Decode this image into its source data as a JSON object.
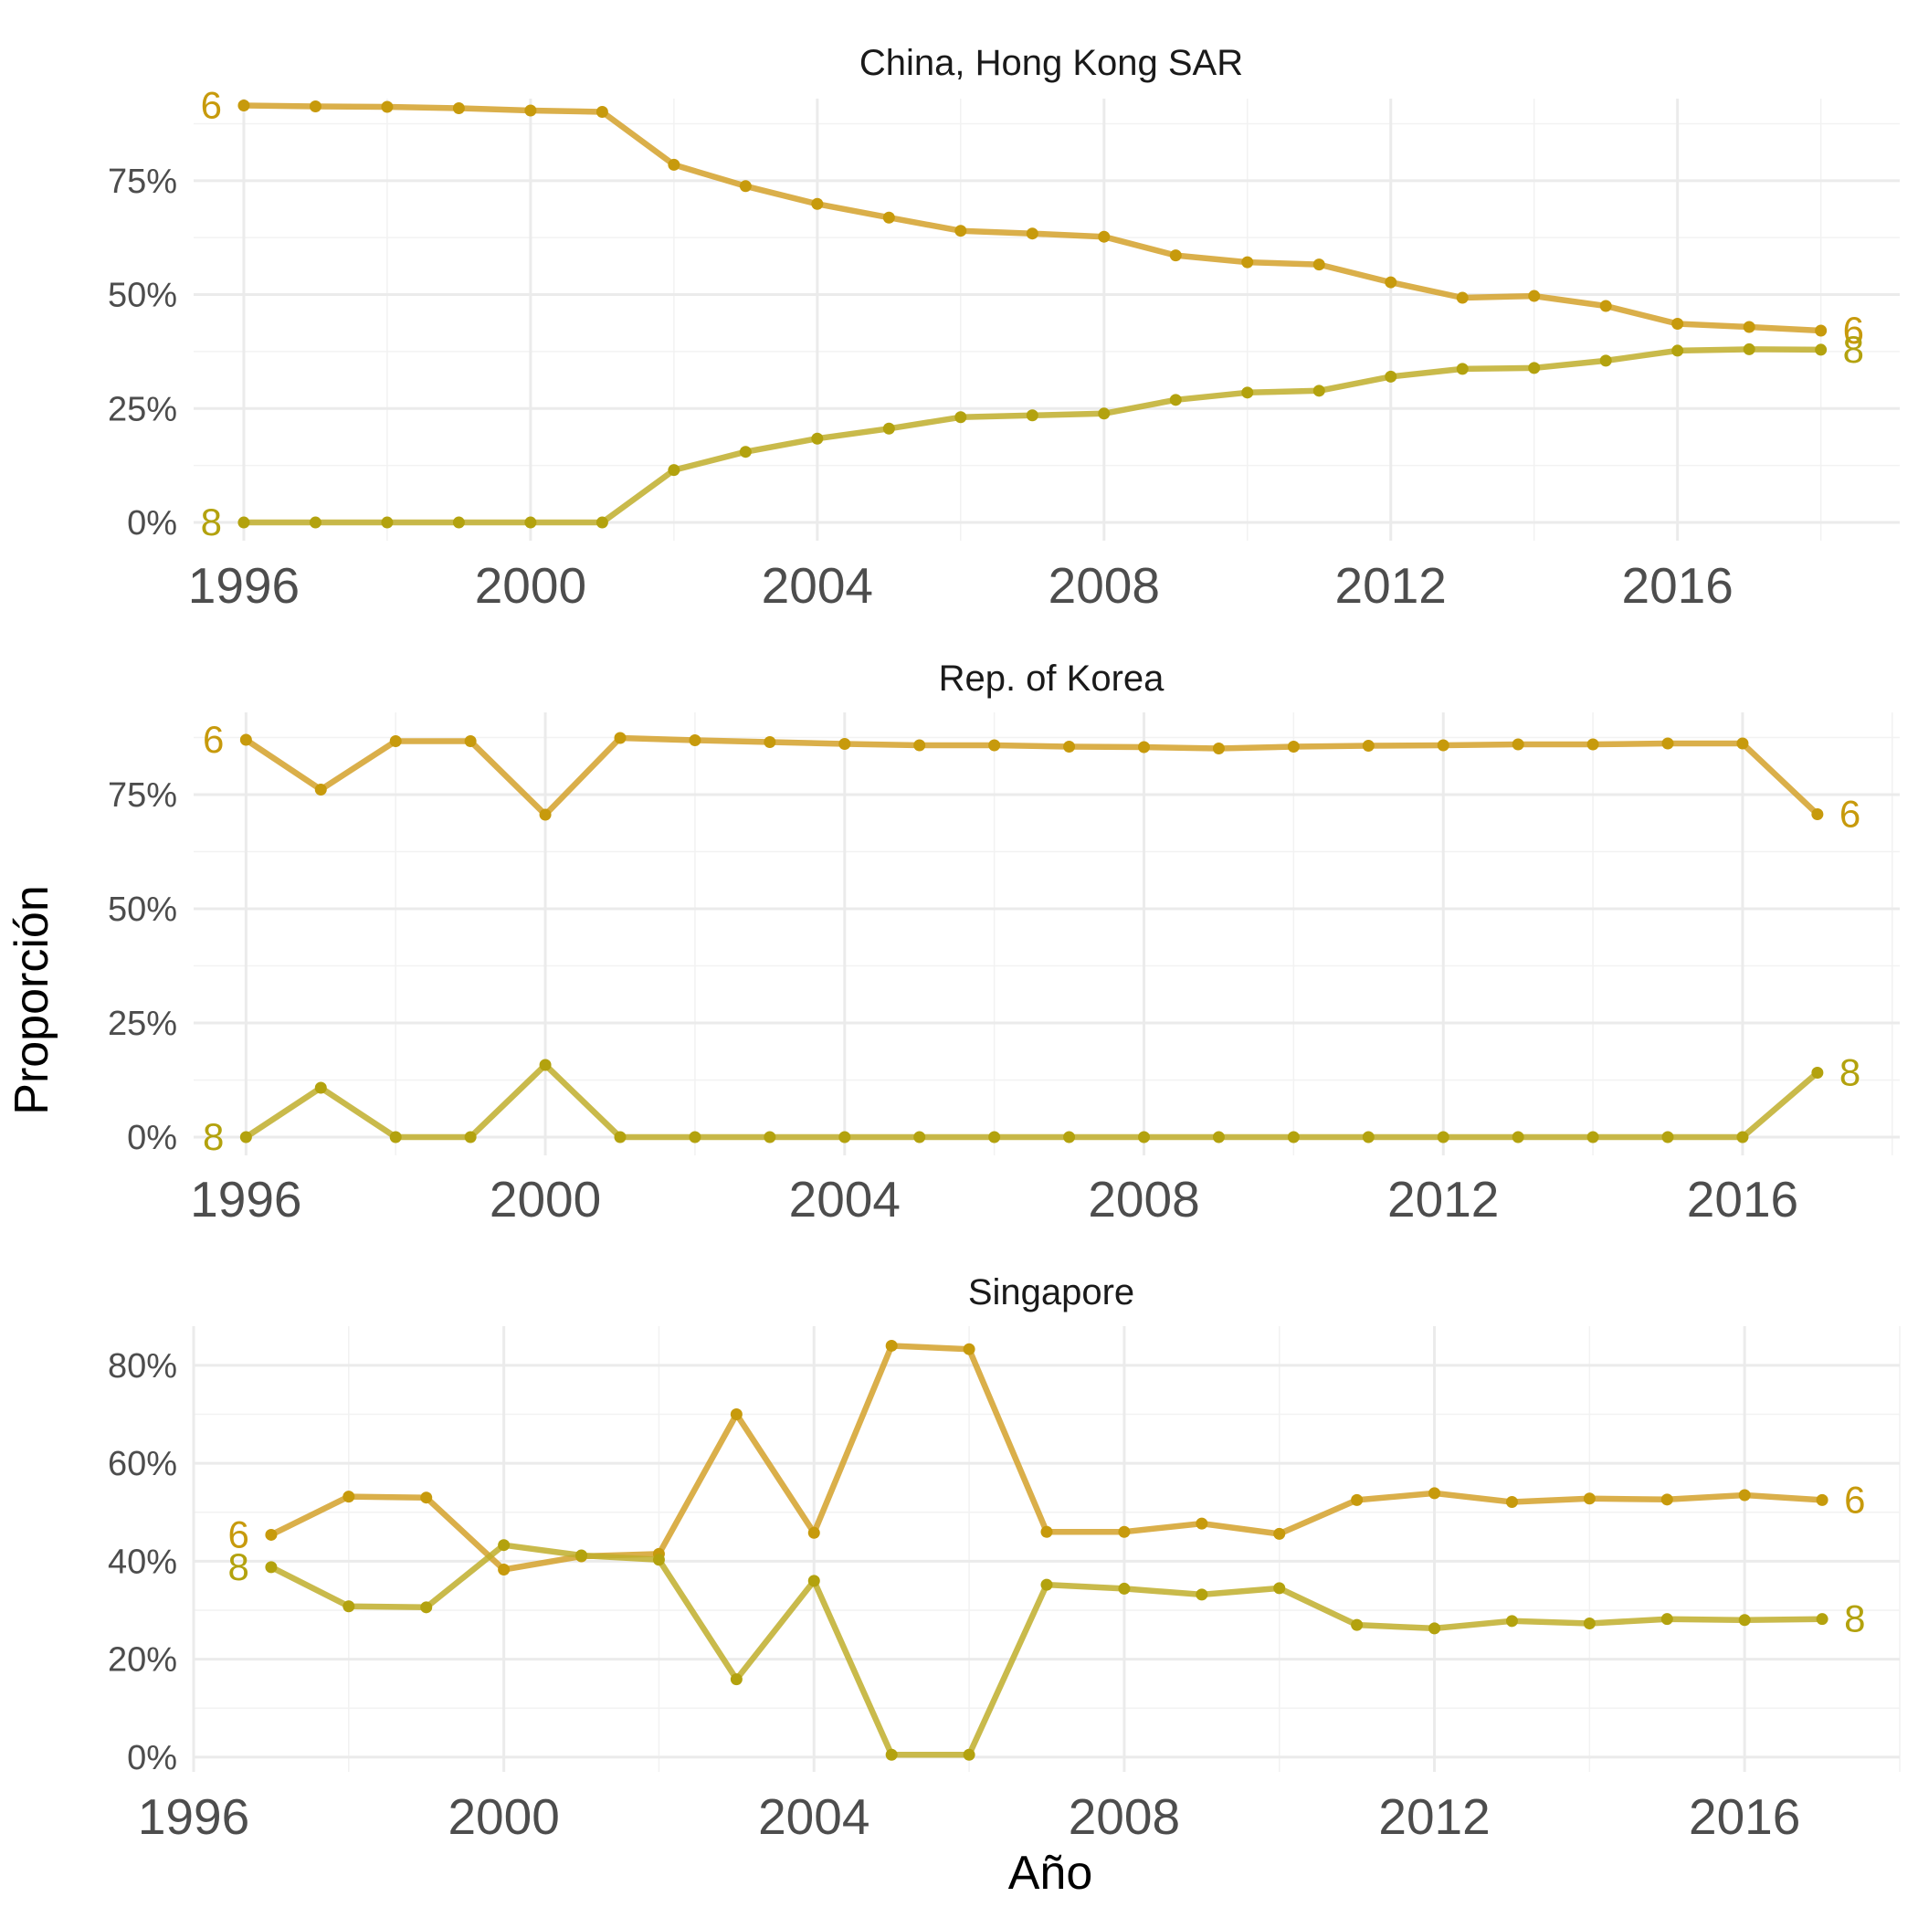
{
  "chart_data": {
    "type": "line",
    "xlabel": "Año",
    "ylabel": "Proporción",
    "colors": {
      "6": "#D4A12A",
      "8": "#BFAE2B",
      "6_point": "#C79A0C",
      "8_point": "#B3A20E"
    },
    "panels": [
      {
        "title": "China, Hong Kong SAR",
        "ylim": [
          -0.04,
          0.93
        ],
        "y_ticks": [
          0,
          0.25,
          0.5,
          0.75
        ],
        "y_tick_labels": [
          "0%",
          "25%",
          "50%",
          "75%"
        ],
        "xlim": [
          1995.3,
          2019.1
        ],
        "x_ticks": [
          1996,
          2000,
          2004,
          2008,
          2012,
          2016
        ],
        "x_tick_labels": [
          "1996",
          "2000",
          "2004",
          "2008",
          "2012",
          "2016"
        ],
        "series": [
          {
            "name": "6",
            "start_label": "6",
            "end_label": "6",
            "x": [
              1996,
              1997,
              1998,
              1999,
              2000,
              2001,
              2002,
              2003,
              2004,
              2005,
              2006,
              2007,
              2008,
              2009,
              2010,
              2011,
              2012,
              2013,
              2014,
              2015,
              2016,
              2017,
              2018
            ],
            "values": [
              0.915,
              0.913,
              0.912,
              0.909,
              0.904,
              0.901,
              0.785,
              0.738,
              0.699,
              0.669,
              0.64,
              0.634,
              0.627,
              0.586,
              0.571,
              0.566,
              0.527,
              0.493,
              0.497,
              0.475,
              0.436,
              0.429,
              0.421
            ]
          },
          {
            "name": "8",
            "start_label": "8",
            "end_label": "8",
            "x": [
              1996,
              1997,
              1998,
              1999,
              2000,
              2001,
              2002,
              2003,
              2004,
              2005,
              2006,
              2007,
              2008,
              2009,
              2010,
              2011,
              2012,
              2013,
              2014,
              2015,
              2016,
              2017,
              2018
            ],
            "values": [
              0,
              0,
              0,
              0,
              0,
              0,
              0.115,
              0.155,
              0.184,
              0.206,
              0.231,
              0.235,
              0.239,
              0.269,
              0.285,
              0.289,
              0.32,
              0.337,
              0.339,
              0.355,
              0.377,
              0.38,
              0.379
            ]
          }
        ]
      },
      {
        "title": "Rep. of Korea",
        "ylim": [
          -0.04,
          0.93
        ],
        "y_ticks": [
          0,
          0.25,
          0.5,
          0.75
        ],
        "y_tick_labels": [
          "0%",
          "25%",
          "50%",
          "75%"
        ],
        "xlim": [
          1995.3,
          2018.1
        ],
        "x_ticks": [
          1996,
          2000,
          2004,
          2008,
          2012,
          2016
        ],
        "x_tick_labels": [
          "1996",
          "2000",
          "2004",
          "2008",
          "2012",
          "2016"
        ],
        "series": [
          {
            "name": "6",
            "start_label": "6",
            "end_label": "6",
            "x": [
              1996,
              1997,
              1998,
              1999,
              2000,
              2001,
              2002,
              2003,
              2004,
              2005,
              2006,
              2007,
              2008,
              2009,
              2010,
              2011,
              2012,
              2013,
              2014,
              2015,
              2016,
              2017
            ],
            "values": [
              0.87,
              0.761,
              0.867,
              0.867,
              0.706,
              0.874,
              0.869,
              0.865,
              0.861,
              0.858,
              0.858,
              0.855,
              0.854,
              0.851,
              0.855,
              0.857,
              0.858,
              0.86,
              0.86,
              0.862,
              0.862,
              0.707
            ]
          },
          {
            "name": "8",
            "start_label": "8",
            "end_label": "8",
            "x": [
              1996,
              1997,
              1998,
              1999,
              2000,
              2001,
              2002,
              2003,
              2004,
              2005,
              2006,
              2007,
              2008,
              2009,
              2010,
              2011,
              2012,
              2013,
              2014,
              2015,
              2016,
              2017
            ],
            "values": [
              0,
              0.108,
              0,
              0,
              0.158,
              0,
              0,
              0,
              0,
              0,
              0,
              0,
              0,
              0,
              0,
              0,
              0,
              0,
              0,
              0,
              0,
              0.141
            ]
          }
        ]
      },
      {
        "title": "Singapore",
        "ylim": [
          -0.03,
          0.88
        ],
        "y_ticks": [
          0,
          0.2,
          0.4,
          0.6,
          0.8
        ],
        "y_tick_labels": [
          "0%",
          "20%",
          "40%",
          "60%",
          "80%"
        ],
        "xlim": [
          1996,
          2018
        ],
        "x_ticks": [
          1996,
          2000,
          2004,
          2008,
          2012,
          2016
        ],
        "x_tick_labels": [
          "1996",
          "2000",
          "2004",
          "2008",
          "2012",
          "2016"
        ],
        "series": [
          {
            "name": "6",
            "start_label": "6",
            "end_label": "6",
            "x": [
              1997,
              1998,
              1999,
              2000,
              2001,
              2002,
              2003,
              2004,
              2005,
              2006,
              2007,
              2008,
              2009,
              2010,
              2011,
              2012,
              2013,
              2014,
              2015,
              2016,
              2017
            ],
            "values": [
              0.454,
              0.532,
              0.53,
              0.383,
              0.41,
              0.415,
              0.7,
              0.458,
              0.84,
              0.833,
              0.46,
              0.46,
              0.477,
              0.456,
              0.525,
              0.539,
              0.521,
              0.528,
              0.526,
              0.535,
              0.525
            ]
          },
          {
            "name": "8",
            "start_label": "8",
            "end_label": "8",
            "x": [
              1997,
              1998,
              1999,
              2000,
              2001,
              2002,
              2003,
              2004,
              2005,
              2006,
              2007,
              2008,
              2009,
              2010,
              2011,
              2012,
              2013,
              2014,
              2015,
              2016,
              2017
            ],
            "values": [
              0.388,
              0.308,
              0.306,
              0.433,
              0.412,
              0.403,
              0.159,
              0.36,
              0.005,
              0.005,
              0.352,
              0.344,
              0.332,
              0.345,
              0.27,
              0.263,
              0.278,
              0.273,
              0.282,
              0.28,
              0.282
            ]
          }
        ]
      }
    ]
  }
}
